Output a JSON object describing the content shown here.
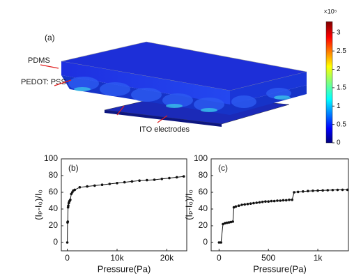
{
  "figure_a": {
    "panel_label": "(a)",
    "labels": [
      "PDMS",
      "PEDOT: PSS",
      "ITO electrodes"
    ],
    "colorbar": {
      "label": "×10⁵",
      "lim": [
        0,
        3.3
      ],
      "ticks": [
        0,
        0.5,
        1,
        1.5,
        2,
        2.5,
        3
      ]
    }
  },
  "chart_data": [
    {
      "type": "line",
      "panel_label": "(b)",
      "x_label": "Pressure(Pa)",
      "y_label": "(Iₚ-I₀)/I₀",
      "color": "#111111",
      "x": [
        0,
        50,
        100,
        150,
        200,
        300,
        400,
        500,
        600,
        800,
        1000,
        1200,
        1500,
        2500,
        4000,
        5500,
        7000,
        8500,
        10000,
        11500,
        13000,
        14500,
        16000,
        17500,
        19000,
        20500,
        22000,
        23400
      ],
      "values": [
        0,
        24,
        25,
        42,
        44,
        47,
        49,
        50,
        51,
        58,
        60,
        62,
        63,
        66,
        67,
        68,
        69,
        70,
        71,
        72,
        73,
        74,
        74.5,
        75,
        76,
        77,
        78,
        79
      ],
      "xlim": [
        -1200,
        24000
      ],
      "xticks": [
        0,
        {
          "value": 10000,
          "label": "10k"
        },
        {
          "value": 20000,
          "label": "20k"
        }
      ],
      "ylim": [
        -10,
        100
      ],
      "yticks": [
        0,
        20,
        40,
        60,
        80,
        100
      ]
    },
    {
      "type": "line",
      "panel_label": "(c)",
      "x_label": "Pressure(Pa)",
      "y_label": "(Iₚ-I₀)/I₀",
      "color": "#111111",
      "x": [
        0,
        20,
        40,
        60,
        80,
        100,
        120,
        140,
        150,
        170,
        200,
        230,
        260,
        290,
        320,
        350,
        380,
        410,
        440,
        470,
        500,
        530,
        560,
        590,
        620,
        650,
        680,
        710,
        740,
        760,
        800,
        850,
        900,
        950,
        1000,
        1050,
        1100,
        1150,
        1200,
        1250,
        1300
      ],
      "values": [
        0,
        0,
        22,
        23,
        23.5,
        24,
        24.5,
        25,
        42,
        43,
        44,
        45,
        45.5,
        46,
        46.5,
        47,
        47.5,
        48,
        48.5,
        49,
        49,
        49.5,
        49.5,
        50,
        50,
        50.5,
        50.5,
        51,
        51,
        60,
        60.5,
        61,
        61.5,
        61.8,
        62,
        62.3,
        62.5,
        62.7,
        62.9,
        63,
        63
      ],
      "xlim": [
        -80,
        1310
      ],
      "xticks": [
        0,
        500,
        {
          "value": 1000,
          "label": "1k"
        }
      ],
      "ylim": [
        -10,
        100
      ],
      "yticks": [
        0,
        20,
        40,
        60,
        80,
        100
      ]
    }
  ]
}
